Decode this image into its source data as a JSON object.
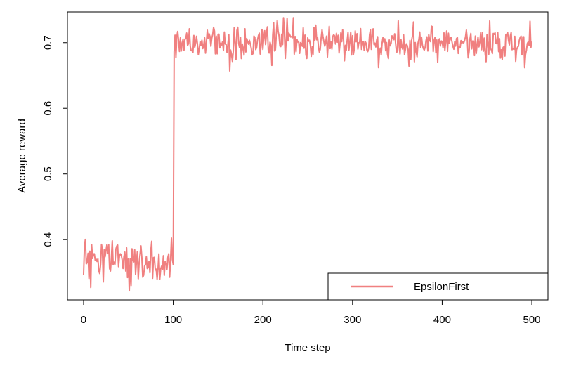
{
  "chart_data": {
    "type": "line",
    "xlabel": "Time step",
    "ylabel": "Average reward",
    "xlim": [
      -18,
      518
    ],
    "ylim": [
      0.3082,
      0.7468
    ],
    "xticks": [
      0,
      100,
      200,
      300,
      400,
      500
    ],
    "yticks": [
      0.4,
      0.5,
      0.6,
      0.7
    ],
    "grid": false,
    "legend_position": "bottom-right",
    "series": [
      {
        "name": "EpsilonFirst",
        "color": "#f08080",
        "segments": [
          {
            "x_start": 0,
            "x_end": 100,
            "mean": 0.362,
            "spread": 0.018,
            "min": 0.322,
            "max": 0.411
          },
          {
            "x_start": 101,
            "x_end": 500,
            "mean": 0.7,
            "spread": 0.013,
            "min": 0.657,
            "max": 0.738
          }
        ]
      }
    ]
  }
}
